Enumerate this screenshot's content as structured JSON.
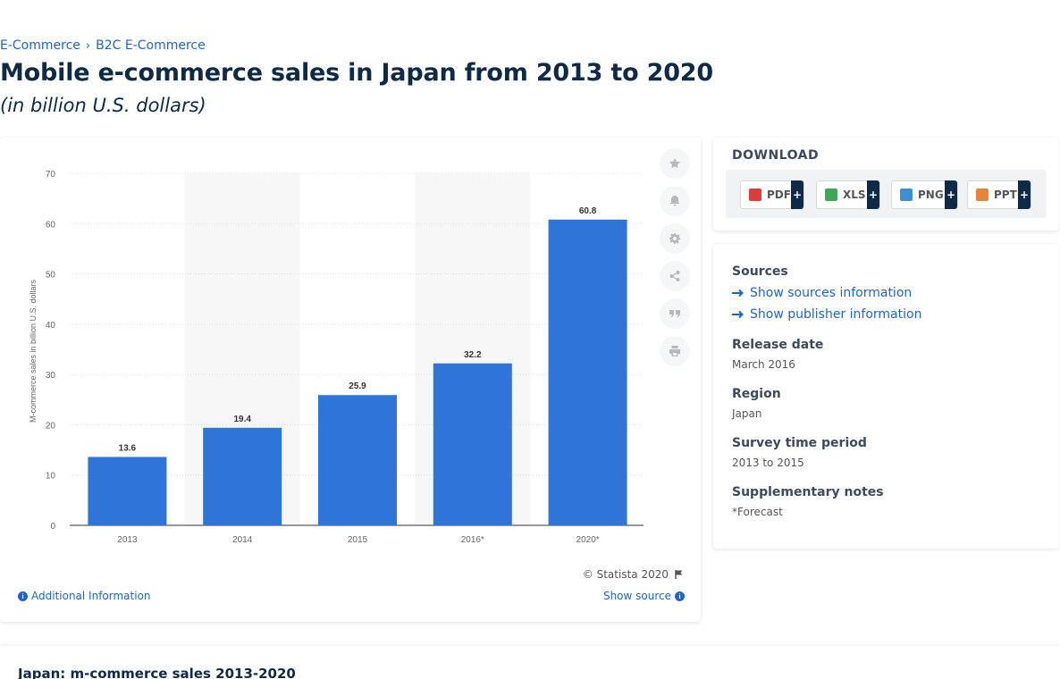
{
  "breadcrumb": [
    {
      "label": "E-Commerce"
    },
    {
      "label": "B2C E-Commerce"
    }
  ],
  "breadcrumb_sep": "›",
  "title": "Mobile e-commerce sales in Japan from 2013 to 2020",
  "subtitle": "(in billion U.S. dollars)",
  "chart_data": {
    "type": "bar",
    "categories": [
      "2013",
      "2014",
      "2015",
      "2016*",
      "2020*"
    ],
    "values": [
      13.6,
      19.4,
      25.9,
      32.2,
      60.8
    ],
    "data_labels": [
      "13.6",
      "19.4",
      "25.9",
      "32.2",
      "60.8"
    ],
    "ylabel": "M-commerce sales in billion U.S. dollars",
    "ylim": [
      0,
      70
    ],
    "yticks": [
      0,
      10,
      20,
      30,
      40,
      50,
      60,
      70
    ],
    "grid": true,
    "bar_color": "#2f74d9"
  },
  "tools": [
    {
      "name": "favorite-star-icon"
    },
    {
      "name": "notification-bell-icon"
    },
    {
      "name": "settings-gear-icon"
    },
    {
      "name": "share-icon"
    },
    {
      "name": "cite-quote-icon"
    },
    {
      "name": "print-icon"
    }
  ],
  "copyright": "© Statista 2020",
  "additional_info": "Additional Information",
  "show_source": "Show source",
  "download": {
    "title": "DOWNLOAD",
    "buttons": [
      {
        "label": "PDF",
        "color": "#e03b3b"
      },
      {
        "label": "XLS",
        "color": "#3aa855"
      },
      {
        "label": "PNG",
        "color": "#3d8fd6"
      },
      {
        "label": "PPT",
        "color": "#e8843a"
      }
    ],
    "plus": "+"
  },
  "meta": {
    "sources_heading": "Sources",
    "show_sources": "Show sources information",
    "show_publisher": "Show publisher information",
    "release_heading": "Release date",
    "release_value": "March 2016",
    "region_heading": "Region",
    "region_value": "Japan",
    "survey_heading": "Survey time period",
    "survey_value": "2013 to 2015",
    "notes_heading": "Supplementary notes",
    "notes_value": "*Forecast"
  },
  "bottom_title": "Japan: m-commerce sales 2013-2020"
}
